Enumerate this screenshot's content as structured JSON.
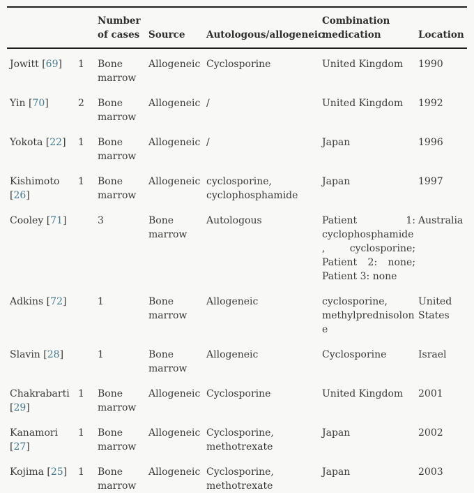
{
  "page": {
    "background_color": "#f8f8f6",
    "text_color": "#3a3a3a",
    "border_color": "#1f1f1f",
    "link_color": "#44798e"
  },
  "table": {
    "headers": [
      "",
      "",
      "Number of cases",
      "Source",
      "Autologous/allogeneic",
      "Combination medication",
      "Location"
    ],
    "rows": [
      {
        "author": "Jowitt",
        "ref": "69",
        "cells": [
          "1",
          "Bone marrow",
          "Allogeneic",
          "Cyclosporine",
          "United Kingdom",
          "1990"
        ]
      },
      {
        "author": "Yin",
        "ref": "70",
        "cells": [
          "2",
          "Bone marrow",
          "Allogeneic",
          "/",
          "United Kingdom",
          "1992"
        ]
      },
      {
        "author": "Yokota",
        "ref": "22",
        "cells": [
          "1",
          "Bone marrow",
          "Allogeneic",
          "/",
          "Japan",
          "1996"
        ]
      },
      {
        "author": "Kishimoto",
        "ref": "26",
        "cells": [
          "1",
          "Bone marrow",
          "Allogeneic",
          "cyclosporine, cyclophosphamide",
          "Japan",
          "1997"
        ]
      },
      {
        "author": "Cooley",
        "ref": "71",
        "cells": [
          "",
          "3",
          "Bone marrow",
          "Autologous",
          "Patient 1: cyclophosphamide, cyclosporine; Patient 2: none; Patient 3: none",
          "Australia"
        ]
      },
      {
        "author": "Adkins",
        "ref": "72",
        "cells": [
          "",
          "1",
          "Bone marrow",
          "Allogeneic",
          "cyclosporine, methylprednisolone",
          "United States"
        ]
      },
      {
        "author": "Slavin",
        "ref": "28",
        "cells": [
          "",
          "1",
          "Bone marrow",
          "Allogeneic",
          "Cyclosporine",
          "Israel"
        ]
      },
      {
        "author": "Chakrabarti",
        "ref": "29",
        "cells": [
          "1",
          "Bone marrow",
          "Allogeneic",
          "Cyclosporine",
          "United Kingdom",
          "2001"
        ]
      },
      {
        "author": "Kanamori",
        "ref": "27",
        "cells": [
          "1",
          "Bone marrow",
          "Allogeneic",
          "Cyclosporine, methotrexate",
          "Japan",
          "2002"
        ]
      },
      {
        "author": "Kojima",
        "ref": "25",
        "cells": [
          "1",
          "Bone marrow",
          "Allogeneic",
          "Cyclosporine, methotrexate",
          "Japan",
          "2003"
        ]
      }
    ]
  }
}
